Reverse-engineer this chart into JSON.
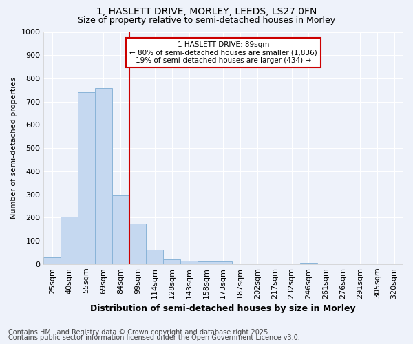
{
  "title": "1, HASLETT DRIVE, MORLEY, LEEDS, LS27 0FN",
  "subtitle": "Size of property relative to semi-detached houses in Morley",
  "xlabel": "Distribution of semi-detached houses by size in Morley",
  "ylabel": "Number of semi-detached properties",
  "categories": [
    "25sqm",
    "40sqm",
    "55sqm",
    "69sqm",
    "84sqm",
    "99sqm",
    "114sqm",
    "128sqm",
    "143sqm",
    "158sqm",
    "173sqm",
    "187sqm",
    "202sqm",
    "217sqm",
    "232sqm",
    "246sqm",
    "261sqm",
    "276sqm",
    "291sqm",
    "305sqm",
    "320sqm"
  ],
  "values": [
    28,
    203,
    740,
    757,
    295,
    175,
    62,
    20,
    13,
    10,
    12,
    0,
    0,
    0,
    0,
    5,
    0,
    0,
    0,
    0,
    0
  ],
  "bar_color": "#c5d8f0",
  "bar_edge_color": "#8ab4d8",
  "background_color": "#eef2fa",
  "plot_bg_color": "#eef2fa",
  "grid_color": "#ffffff",
  "red_line_index": 4,
  "annotation_title": "1 HASLETT DRIVE: 89sqm",
  "annotation_line1": "← 80% of semi-detached houses are smaller (1,836)",
  "annotation_line2": "19% of semi-detached houses are larger (434) →",
  "ylim": [
    0,
    1000
  ],
  "yticks": [
    0,
    100,
    200,
    300,
    400,
    500,
    600,
    700,
    800,
    900,
    1000
  ],
  "footer1": "Contains HM Land Registry data © Crown copyright and database right 2025.",
  "footer2": "Contains public sector information licensed under the Open Government Licence v3.0.",
  "title_fontsize": 10,
  "subtitle_fontsize": 9,
  "xlabel_fontsize": 9,
  "ylabel_fontsize": 8,
  "annotation_box_color": "#cc0000",
  "red_line_color": "#cc0000",
  "tick_fontsize": 8,
  "footer_fontsize": 7
}
